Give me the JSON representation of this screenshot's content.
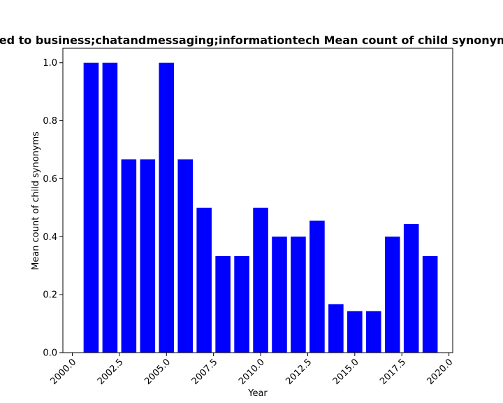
{
  "chart_data": {
    "type": "bar",
    "title": "ed to business;chatandmessaging;informationtech Mean count of child synonyms",
    "xlabel": "Year",
    "ylabel": "Mean count of child synonyms",
    "x": [
      2001,
      2002,
      2003,
      2004,
      2005,
      2006,
      2007,
      2008,
      2009,
      2010,
      2011,
      2012,
      2013,
      2014,
      2015,
      2016,
      2017,
      2018,
      2019
    ],
    "values": [
      1.0,
      1.0,
      0.667,
      0.667,
      1.0,
      0.667,
      0.5,
      0.333,
      0.333,
      0.5,
      0.4,
      0.4,
      0.455,
      0.167,
      0.143,
      0.143,
      0.4,
      0.444,
      0.333
    ],
    "xlim": [
      1999.5,
      2020.2
    ],
    "ylim": [
      0,
      1.05
    ],
    "xticks": [
      "2000.0",
      "2002.5",
      "2005.0",
      "2007.5",
      "2010.0",
      "2012.5",
      "2015.0",
      "2017.5",
      "2020.0"
    ],
    "yticks": [
      "0.0",
      "0.2",
      "0.4",
      "0.6",
      "0.8",
      "1.0"
    ],
    "bar_color": "#0000ff",
    "grid": false,
    "legend": "none"
  }
}
